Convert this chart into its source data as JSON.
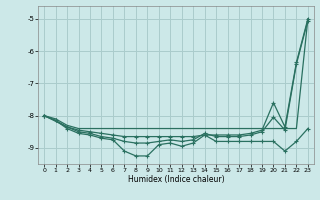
{
  "xlabel": "Humidex (Indice chaleur)",
  "bg_color": "#cce8e8",
  "grid_color": "#aacccc",
  "line_color": "#2a7060",
  "xlim": [
    -0.5,
    23.5
  ],
  "ylim": [
    -9.5,
    -4.6
  ],
  "yticks": [
    -9,
    -8,
    -7,
    -6,
    -5
  ],
  "xticks": [
    0,
    1,
    2,
    3,
    4,
    5,
    6,
    7,
    8,
    9,
    10,
    11,
    12,
    13,
    14,
    15,
    16,
    17,
    18,
    19,
    20,
    21,
    22,
    23
  ],
  "line1_x": [
    0,
    1,
    2,
    3,
    4,
    5,
    6,
    7,
    8,
    9,
    10,
    11,
    12,
    13,
    14,
    15,
    16,
    17,
    18,
    19,
    20,
    21,
    22,
    23
  ],
  "line1_y": [
    -8.0,
    -8.1,
    -8.3,
    -8.4,
    -8.4,
    -8.4,
    -8.4,
    -8.4,
    -8.4,
    -8.4,
    -8.4,
    -8.4,
    -8.4,
    -8.4,
    -8.4,
    -8.4,
    -8.4,
    -8.4,
    -8.4,
    -8.4,
    -8.4,
    -8.4,
    -8.4,
    -5.0
  ],
  "line2_x": [
    0,
    2,
    3,
    4,
    5,
    6,
    7,
    8,
    9,
    10,
    11,
    12,
    13,
    14,
    15,
    16,
    17,
    18,
    19,
    20,
    21,
    22,
    23
  ],
  "line2_y": [
    -8.0,
    -8.35,
    -8.45,
    -8.5,
    -8.55,
    -8.6,
    -8.65,
    -8.65,
    -8.65,
    -8.65,
    -8.65,
    -8.65,
    -8.65,
    -8.6,
    -8.6,
    -8.6,
    -8.6,
    -8.55,
    -8.45,
    -7.6,
    -8.35,
    -6.35,
    -5.0
  ],
  "line3_x": [
    0,
    1,
    2,
    3,
    4,
    5,
    6,
    7,
    8,
    9,
    10,
    11,
    12,
    13,
    14,
    15,
    16,
    17,
    18,
    19,
    20,
    21,
    22,
    23
  ],
  "line3_y": [
    -8.0,
    -8.15,
    -8.35,
    -8.5,
    -8.55,
    -8.65,
    -8.7,
    -8.8,
    -8.85,
    -8.85,
    -8.8,
    -8.75,
    -8.8,
    -8.75,
    -8.55,
    -8.65,
    -8.65,
    -8.65,
    -8.6,
    -8.5,
    -8.05,
    -8.45,
    -6.4,
    -5.05
  ],
  "line4_x": [
    0,
    1,
    2,
    3,
    4,
    5,
    6,
    7,
    8,
    9,
    10,
    11,
    12,
    13,
    14,
    15,
    16,
    17,
    18,
    19,
    20,
    21,
    22,
    23
  ],
  "line4_y": [
    -8.0,
    -8.15,
    -8.4,
    -8.55,
    -8.6,
    -8.7,
    -8.75,
    -9.1,
    -9.25,
    -9.25,
    -8.9,
    -8.85,
    -8.95,
    -8.85,
    -8.6,
    -8.8,
    -8.8,
    -8.8,
    -8.8,
    -8.8,
    -8.8,
    -9.1,
    -8.8,
    -8.4
  ]
}
